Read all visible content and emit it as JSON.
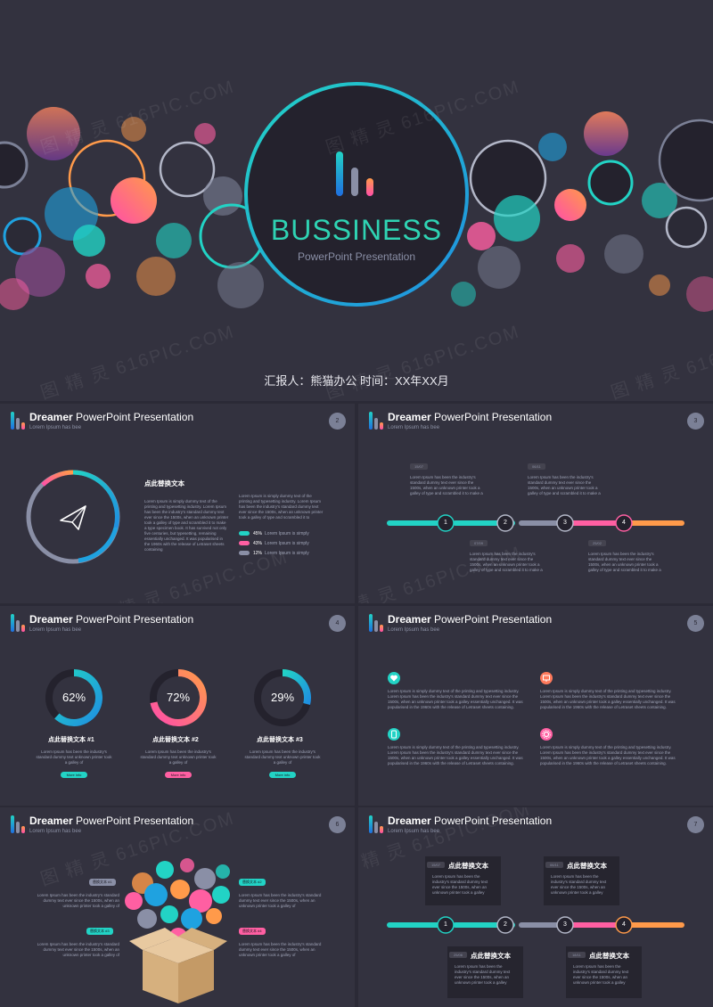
{
  "cover": {
    "title": "BUSSINESS",
    "subtitle": "PowerPoint Presentation",
    "footer": "汇报人：熊猫办公   时间：XX年XX月"
  },
  "watermark": "图 精 灵 616PIC.COM",
  "slide_header": {
    "title_bold": "Dreamer",
    "title_rest": " PowerPoint Presentation",
    "subtitle": "Lorem Ipsum has bee"
  },
  "slides": [
    {
      "number": "2",
      "heading": "点此替换文本",
      "left_text": "Lorem Ipsum is simply dummy text of the printing and typesetting industry. Lorem Ipsum has been the industry's standard dummy text ever since the 1500s, when an unknown printer took a galley of type and scrambled it to make a type specimen book. It has survived not only five centuries, but typesetting, remaining essentially unchanged. It was popularised in the 1960s with the release of Letraset sheets containing",
      "right_text": "Lorem Ipsum is simply dummy text of the printing and typesetting industry. Lorem Ipsum has been the industry's standard dummy text ever since the 1500s, when an unknown printer took a galley of type and scrambled it to",
      "legend": [
        {
          "pct": "45%",
          "label": "Lorem Ipsum is simply",
          "color": "#22d3c5"
        },
        {
          "pct": "43%",
          "label": "Lorem Ipsum is simply",
          "color": "#ff5fa2"
        },
        {
          "pct": "12%",
          "label": "Lorem Ipsum is simply",
          "color": "#8a8fa6"
        }
      ]
    },
    {
      "number": "3",
      "dates": [
        "15/07",
        "06/11",
        "07/09",
        "25/02"
      ],
      "note": "Lorem Ipsum has been the industry's standard dummy text ever since the 1500s, when an unknown printer took a galley of type and scrambled it to make a",
      "steps": [
        "1",
        "2",
        "3",
        "4"
      ]
    },
    {
      "number": "4",
      "donuts": [
        {
          "value": 62,
          "label": "62%",
          "caption": "点此替换文本 #1",
          "pill_color": "#22d3c5"
        },
        {
          "value": 72,
          "label": "72%",
          "caption": "点此替换文本 #2",
          "pill_color": "#ff5fa2"
        },
        {
          "value": 29,
          "label": "29%",
          "caption": "点此替换文本 #3",
          "pill_color": "#22d3c5"
        }
      ],
      "donut_text": "Lorem Ipsum has been the industry's standard dummy text unknown printer took a galley of",
      "pill_text": "More info"
    },
    {
      "number": "5",
      "blocks": [
        {
          "icon": "heart-icon",
          "color": "#22d3c5"
        },
        {
          "icon": "screen-icon",
          "color": "#ff7a5c"
        },
        {
          "icon": "mobile-icon",
          "color": "#22d3c5"
        },
        {
          "icon": "gear-icon",
          "color": "#ff5fa2"
        }
      ],
      "block_text": "Lorem Ipsum is simply dummy text of the printing and typesetting industry. Lorem Ipsum has been the industry's standard dummy text ever since the 1500s, when an unknown printer took a galley essentially unchanged. It was popularised in the 1960s with the release of Letraset sheets containing."
    },
    {
      "number": "6",
      "tags": [
        "替换文本 #1",
        "替换文本 #2",
        "替换文本 #3",
        "替换文本 #4"
      ],
      "tag_text": "Lorem Ipsum has been the industry's standard dummy text ever since the 1500s, when an unknown printer took a galley of"
    },
    {
      "number": "7",
      "cards": [
        {
          "date": "15/07",
          "heading": "点此替换文本"
        },
        {
          "date": "06/11",
          "heading": "点此替换文本"
        },
        {
          "date": "25/06",
          "heading": "点此替换文本"
        },
        {
          "date": "18/11",
          "heading": "点此替换文本"
        }
      ],
      "card_text": "Lorem Ipsum has been the industry's standard dummy text ever since the 1500s, when an unknown printer took a galley",
      "steps": [
        "1",
        "2",
        "3",
        "4"
      ]
    }
  ],
  "colors": {
    "teal": "#22d3c5",
    "blue": "#1fa2e0",
    "pink": "#ff5fa2",
    "orange": "#ff9a4a",
    "grey": "#8a8fa6"
  }
}
